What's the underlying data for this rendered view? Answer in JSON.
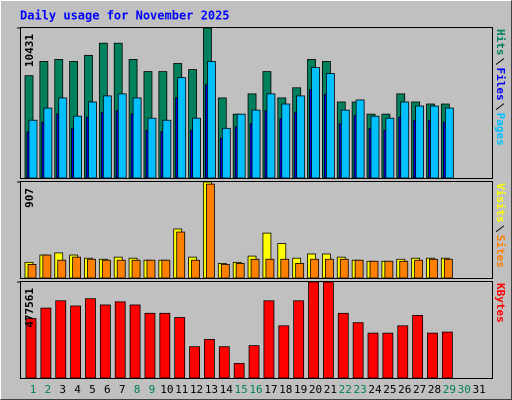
{
  "chart_data": [
    {
      "type": "bar",
      "title": "Daily usage for November 2025",
      "ylim": [
        0,
        10431
      ],
      "yticks": [
        10431
      ],
      "series": [
        {
          "name": "Hits",
          "color": "#00805c",
          "values": [
            7118,
            8105,
            8246,
            8105,
            8528,
            9374,
            9374,
            8246,
            7400,
            7400,
            7964,
            7541,
            10431,
            5568,
            4440,
            5850,
            7400,
            5568,
            6273,
            8246,
            8105,
            5286,
            5286,
            4440,
            4440,
            5850,
            5286,
            5145,
            5145,
            null,
            null
          ]
        },
        {
          "name": "Files",
          "color": "#0000ff",
          "values": [
            3214,
            3890,
            4454,
            3439,
            4229,
            4567,
            4680,
            4454,
            3326,
            3214,
            5582,
            3326,
            6484,
            2763,
            3552,
            3778,
            4680,
            4116,
            4567,
            6146,
            5807,
            3778,
            4342,
            3439,
            3326,
            4229,
            4003,
            4003,
            3890,
            null,
            null
          ]
        },
        {
          "name": "Pages",
          "color": "#00c0ff",
          "values": [
            4017,
            4863,
            5568,
            4299,
            5286,
            5709,
            5850,
            5568,
            4158,
            4017,
            6978,
            4158,
            8105,
            3454,
            4440,
            4722,
            5850,
            5145,
            5709,
            7682,
            7259,
            4722,
            5427,
            4299,
            4158,
            5286,
            5004,
            5004,
            4863,
            null,
            null
          ]
        }
      ]
    },
    {
      "type": "bar",
      "ylim": [
        0,
        907
      ],
      "yticks": [
        907
      ],
      "series": [
        {
          "name": "Visits",
          "color": "#ffff00",
          "values": [
            148,
            217,
            237,
            217,
            187,
            177,
            197,
            187,
            168,
            168,
            463,
            197,
            907,
            138,
            148,
            207,
            424,
            325,
            187,
            227,
            227,
            197,
            168,
            158,
            158,
            177,
            187,
            187,
            187,
            null,
            null
          ]
        },
        {
          "name": "Sites",
          "color": "#ff8000",
          "values": [
            128,
            217,
            168,
            197,
            177,
            168,
            168,
            168,
            168,
            168,
            434,
            168,
            887,
            128,
            138,
            177,
            177,
            177,
            138,
            177,
            177,
            177,
            168,
            158,
            158,
            158,
            168,
            177,
            177,
            null,
            null
          ]
        }
      ]
    },
    {
      "type": "bar",
      "ylim": [
        0,
        477561
      ],
      "yticks": [
        477561
      ],
      "categories": [
        "1",
        "2",
        "3",
        "4",
        "5",
        "6",
        "7",
        "8",
        "9",
        "10",
        "11",
        "12",
        "13",
        "14",
        "15",
        "16",
        "17",
        "18",
        "19",
        "20",
        "21",
        "22",
        "23",
        "24",
        "25",
        "26",
        "27",
        "28",
        "29",
        "30",
        "31"
      ],
      "category_colors": [
        "#00805c",
        "#00805c",
        "#000000",
        "#000000",
        "#000000",
        "#000000",
        "#000000",
        "#00805c",
        "#00805c",
        "#000000",
        "#000000",
        "#000000",
        "#000000",
        "#000000",
        "#00805c",
        "#00805c",
        "#000000",
        "#000000",
        "#000000",
        "#000000",
        "#000000",
        "#00805c",
        "#00805c",
        "#000000",
        "#000000",
        "#000000",
        "#000000",
        "#000000",
        "#00805c",
        "#00805c",
        "#000000"
      ],
      "series": [
        {
          "name": "KBytes",
          "color": "#ff0000",
          "values": [
            295880,
            347790,
            384130,
            358180,
            394520,
            363370,
            378940,
            363370,
            321840,
            321840,
            301080,
            155730,
            192070,
            155730,
            72670,
            160920,
            384130,
            259550,
            384130,
            477561,
            477561,
            321840,
            275120,
            223210,
            223210,
            259550,
            311460,
            223210,
            228400,
            null,
            null
          ]
        }
      ]
    }
  ]
}
